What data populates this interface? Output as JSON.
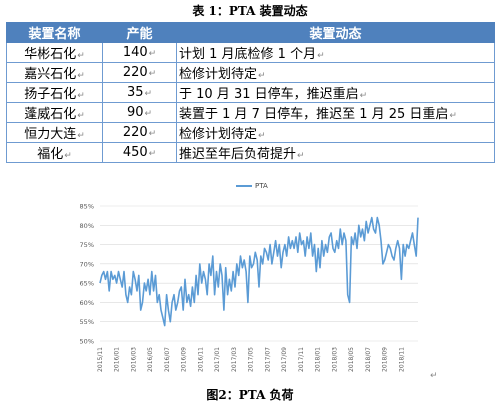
{
  "table": {
    "caption": "表 1：PTA 装置动态",
    "headers": [
      "装置名称",
      "产能",
      "装置动态"
    ],
    "rows": [
      {
        "name": "华彬石化",
        "capacity": "140",
        "status": "计划 1 月底检修 1 个月"
      },
      {
        "name": "嘉兴石化",
        "capacity": "220",
        "status": "检修计划待定"
      },
      {
        "name": "扬子石化",
        "capacity": "35",
        "status": "于 10 月 31 日停车，推迟重启"
      },
      {
        "name": "蓬威石化",
        "capacity": "90",
        "status": "装置于 1 月 7 日停车，推迟至 1 月 25 日重启"
      },
      {
        "name": "恒力大连",
        "capacity": "220",
        "status": "检修计划待定"
      },
      {
        "name": "福化",
        "capacity": "450",
        "status": "推迟至年后负荷提升"
      }
    ],
    "para_mark": "↵"
  },
  "chart_data": {
    "type": "line",
    "legend": "PTA",
    "legend_placement": "top",
    "ylim": [
      50,
      85
    ],
    "y_ticks": [
      "50%",
      "55%",
      "60%",
      "65%",
      "70%",
      "75%",
      "80%",
      "85%"
    ],
    "grid": true,
    "line_color": "#5b9bd5",
    "x_tick_labels": [
      "2015/11",
      "2016/01",
      "2016/03",
      "2016/05",
      "2016/07",
      "2016/09",
      "2016/11",
      "2017/01",
      "2017/03",
      "2017/05",
      "2017/07",
      "2017/09",
      "2017/11",
      "2018/01",
      "2018/03",
      "2018/05",
      "2018/07",
      "2018/09",
      "2018/11"
    ],
    "x_range": [
      "2015/11",
      "2019/01"
    ],
    "series": [
      {
        "values": [
          65,
          67,
          68,
          66,
          68,
          63,
          68,
          66,
          67,
          65,
          68,
          66,
          64,
          68,
          62,
          60,
          64,
          62,
          68,
          66,
          63,
          67,
          58,
          60,
          65,
          63,
          66,
          62,
          68,
          63,
          67,
          60,
          62,
          58,
          56,
          54,
          62,
          58,
          55,
          60,
          62,
          58,
          60,
          63,
          64,
          58,
          66,
          60,
          62,
          59,
          64,
          60,
          67,
          62,
          70,
          65,
          68,
          66,
          62,
          70,
          67,
          72,
          62,
          68,
          64,
          70,
          67,
          58,
          69,
          62,
          66,
          63,
          68,
          64,
          70,
          67,
          72,
          69,
          71,
          68,
          60,
          72,
          69,
          70,
          73,
          71,
          64,
          72,
          70,
          74,
          73,
          71,
          75,
          70,
          73,
          76,
          72,
          75,
          69,
          73,
          75,
          72,
          77,
          74,
          76,
          74,
          77,
          73,
          78,
          75,
          76,
          72,
          77,
          74,
          78,
          72,
          75,
          68,
          74,
          69,
          76,
          72,
          75,
          73,
          77,
          78,
          74,
          73,
          76,
          74,
          79,
          75,
          78,
          76,
          62,
          60,
          77,
          75,
          78,
          74,
          80,
          77,
          79,
          76,
          81,
          78,
          80,
          82,
          79,
          78,
          82,
          80,
          76,
          70,
          71,
          73,
          75,
          74,
          72,
          71,
          74,
          76,
          74,
          66,
          75,
          72,
          75,
          74,
          76,
          78,
          75,
          72,
          82
        ]
      }
    ]
  },
  "figure": {
    "caption": "图2：PTA 负荷",
    "para_mark": "↵"
  }
}
